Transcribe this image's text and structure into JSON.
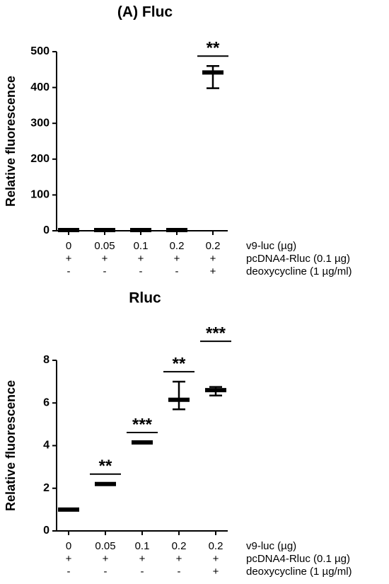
{
  "chart_data": [
    {
      "type": "errorbar",
      "title": "(A) Fluc",
      "y_label": "Relative fluorescence",
      "category_label": "v9-luc (µg)",
      "categories": [
        "0",
        "0.05",
        "0.1",
        "0.2",
        "0.2"
      ],
      "conditions": [
        {
          "label": "pcDNA4-Rluc (0.1 µg)",
          "values": [
            "+",
            "+",
            "+",
            "+",
            "+"
          ]
        },
        {
          "label": "deoxycycline (1 µg/ml)",
          "values": [
            "-",
            "-",
            "-",
            "-",
            "+"
          ]
        }
      ],
      "series": [
        {
          "color": "#000000",
          "values": [
            2,
            2,
            2,
            2,
            442
          ],
          "lower": [
            null,
            null,
            null,
            null,
            398
          ],
          "upper": [
            null,
            null,
            null,
            null,
            460
          ]
        }
      ],
      "significance": [
        null,
        null,
        null,
        null,
        "**"
      ],
      "ylim": [
        0,
        500
      ],
      "yticks": [
        0,
        100,
        200,
        300,
        400,
        500
      ]
    },
    {
      "type": "errorbar",
      "title": "Rluc",
      "y_label": "Relative fluorescence",
      "category_label": "v9-luc (µg)",
      "categories": [
        "0",
        "0.05",
        "0.1",
        "0.2",
        "0.2"
      ],
      "conditions": [
        {
          "label": "pcDNA4-Rluc (0.1 µg)",
          "values": [
            "+",
            "+",
            "+",
            "+",
            "+"
          ]
        },
        {
          "label": "deoxycycline (1 µg/ml)",
          "values": [
            "-",
            "-",
            "-",
            "-",
            "+"
          ]
        }
      ],
      "series": [
        {
          "color": "#000000",
          "values": [
            1.0,
            2.2,
            4.15,
            6.15,
            6.6
          ],
          "lower": [
            null,
            null,
            null,
            5.7,
            6.35
          ],
          "upper": [
            null,
            null,
            null,
            7.0,
            6.75
          ]
        }
      ],
      "significance": [
        null,
        "**",
        "***",
        "**",
        "***"
      ],
      "ylim": [
        0,
        8
      ],
      "yticks": [
        0,
        2,
        4,
        6,
        8
      ]
    }
  ]
}
